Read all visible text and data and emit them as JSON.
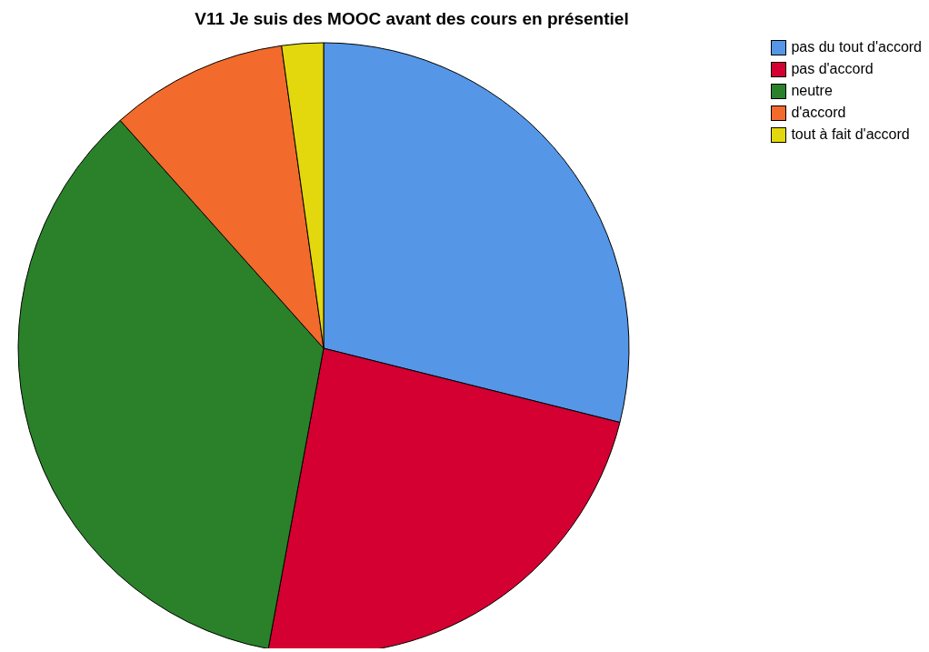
{
  "chart_data": {
    "type": "pie",
    "title": "V11 Je suis des MOOC avant des cours en présentiel",
    "categories": [
      "pas du tout d'accord",
      "pas d'accord",
      "neutre",
      "d'accord",
      "tout à fait d'accord"
    ],
    "values": [
      28.9,
      24.0,
      35.5,
      9.4,
      2.2
    ],
    "colors": [
      "#5596e6",
      "#d30031",
      "#2a8129",
      "#f26a2c",
      "#e2d80d"
    ],
    "legend": "top right"
  }
}
